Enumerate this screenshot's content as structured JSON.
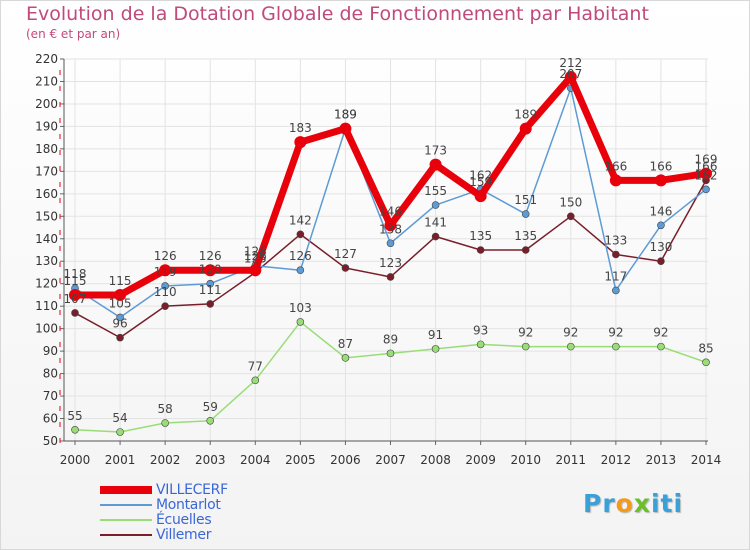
{
  "title": "Evolution de la Dotation Globale de Fonctionnement par Habitant",
  "subtitle": "(en € et par an)",
  "logo": {
    "p1": "Pr",
    "p2": "o",
    "p3": "x",
    "p4": "iti",
    "c1": "#3aa0d8",
    "c2": "#f39a1d",
    "c3": "#6cbf2b",
    "c4": "#3aa0d8"
  },
  "chart_data": {
    "type": "line",
    "title": "Evolution de la Dotation Globale de Fonctionnement par Habitant",
    "subtitle": "(en € et par an)",
    "x": [
      "2000",
      "2001",
      "2002",
      "2003",
      "2004",
      "2005",
      "2006",
      "2007",
      "2008",
      "2009",
      "2010",
      "2011",
      "2012",
      "2013",
      "2014"
    ],
    "ylim": [
      50,
      220
    ],
    "yticks": [
      "50",
      "60",
      "70",
      "80",
      "90",
      "100",
      "110",
      "120",
      "130",
      "140",
      "150",
      "160",
      "170",
      "180",
      "190",
      "200",
      "210",
      "220"
    ],
    "grid": true,
    "series": [
      {
        "name": "VILLECERF",
        "color": "#e8000b",
        "width": 7,
        "values": [
          115,
          115,
          126,
          126,
          126,
          183,
          189,
          146,
          173,
          159,
          189,
          212,
          166,
          166,
          169
        ],
        "labels": [
          "115",
          "115",
          "126",
          "126",
          "126",
          "183",
          "189",
          "146",
          "173",
          "159",
          "189",
          "212",
          "166",
          "166",
          "169"
        ]
      },
      {
        "name": "Montarlot",
        "color": "#5d9bd4",
        "width": 1.5,
        "values": [
          118,
          105,
          119,
          120,
          128,
          126,
          189,
          138,
          155,
          162,
          151,
          207,
          117,
          146,
          162
        ],
        "labels": [
          "118",
          "105",
          "119",
          "120",
          "128",
          "126",
          "189",
          "138",
          "155",
          "162",
          "151",
          "207",
          "117",
          "146",
          "162"
        ]
      },
      {
        "name": "Écuelles",
        "color": "#99dd77",
        "width": 1.5,
        "values": [
          55,
          54,
          58,
          59,
          77,
          103,
          87,
          89,
          91,
          93,
          92,
          92,
          92,
          92,
          85
        ],
        "labels": [
          "55",
          "54",
          "58",
          "59",
          "77",
          "103",
          "87",
          "89",
          "91",
          "93",
          "92",
          "92",
          "92",
          "92",
          "85"
        ]
      },
      {
        "name": "Villemer",
        "color": "#7a1e2a",
        "width": 1.5,
        "values": [
          107,
          96,
          110,
          111,
          125,
          142,
          127,
          123,
          141,
          135,
          135,
          150,
          133,
          130,
          166
        ],
        "labels": [
          "107",
          "96",
          "110",
          "111",
          "125",
          "142",
          "127",
          "123",
          "141",
          "135",
          "135",
          "150",
          "133",
          "130",
          "166"
        ]
      }
    ]
  }
}
